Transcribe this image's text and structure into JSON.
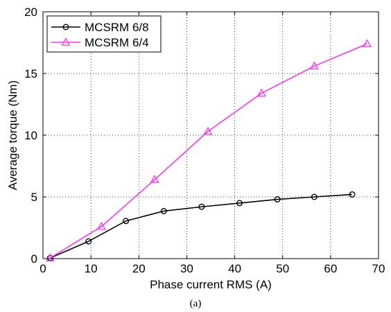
{
  "chart_data": {
    "type": "line",
    "title": "",
    "xlabel": "Phase current RMS (A)",
    "ylabel": "Average torque (Nm)",
    "xlim": [
      0,
      70
    ],
    "ylim": [
      0,
      20
    ],
    "xticks": [
      0,
      10,
      20,
      30,
      40,
      50,
      60,
      70
    ],
    "yticks": [
      0,
      5,
      10,
      15,
      20
    ],
    "grid": true,
    "legend_position": "top-left",
    "series": [
      {
        "name": "MCSRM 6/8",
        "color": "#000000",
        "marker": "circle",
        "x": [
          1.5,
          9.5,
          17.3,
          25.2,
          33.1,
          41.0,
          48.9,
          56.6,
          64.5
        ],
        "y": [
          0.05,
          1.4,
          3.05,
          3.85,
          4.2,
          4.5,
          4.8,
          5.0,
          5.2
        ]
      },
      {
        "name": "MCSRM 6/4",
        "color": "#ff33ff",
        "marker": "triangle",
        "x": [
          1.5,
          12.2,
          23.3,
          34.4,
          45.6,
          56.6,
          67.6
        ],
        "y": [
          0.05,
          2.6,
          6.4,
          10.3,
          13.4,
          15.6,
          17.4
        ]
      }
    ]
  },
  "caption": "(a)"
}
